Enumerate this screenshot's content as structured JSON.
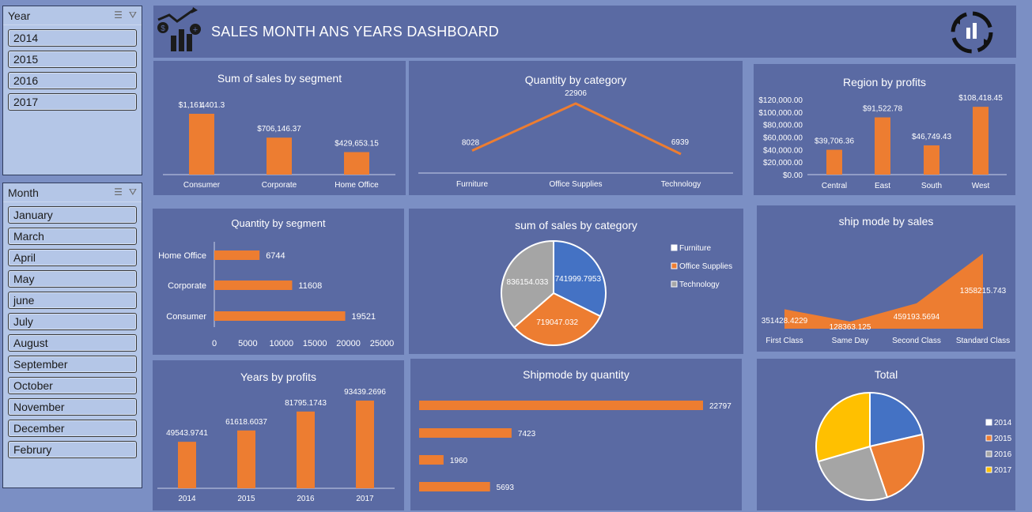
{
  "header": {
    "title": "SALES MONTH ANS YEARS DASHBOARD",
    "left_icon": "sales-growth-chart-icon",
    "right_icon": "cycle-chart-icon"
  },
  "year_slicer": {
    "title": "Year",
    "items": [
      "2014",
      "2015",
      "2016",
      "2017"
    ]
  },
  "month_slicer": {
    "title": "Month",
    "items": [
      "January",
      "March",
      "April",
      "May",
      "june",
      "July",
      "August",
      "September",
      "October",
      "November",
      "December",
      "Februry"
    ]
  },
  "colors": {
    "orange": "#ed7d31",
    "blue": "#4472c4",
    "gray": "#a5a5a5",
    "gold": "#ffc000",
    "panel": "#5a6aa3"
  },
  "charts": {
    "sales_by_segment": {
      "title": "Sum of sales by segment",
      "type": "bar",
      "categories": [
        "Consumer",
        "Corporate",
        "Home Office"
      ],
      "values": [
        1161401.34,
        706146.37,
        429653.15
      ],
      "labels": [
        "$1,161,401.3",
        "$706,146.37",
        "$429,653.15"
      ],
      "label_wrap": "4"
    },
    "quantity_by_category": {
      "title": "Quantity by category",
      "type": "line",
      "categories": [
        "Furniture",
        "Office Supplies",
        "Technology"
      ],
      "values": [
        8028,
        22906,
        6939
      ],
      "labels": [
        "8028",
        "22906",
        "6939"
      ]
    },
    "region_by_profits": {
      "title": "Region by profits",
      "type": "bar",
      "categories": [
        "Central",
        "East",
        "South",
        "West"
      ],
      "values": [
        39706.36,
        91522.78,
        46749.43,
        108418.45
      ],
      "labels": [
        "$39,706.36",
        "$91,522.78",
        "$46,749.43",
        "$108,418.45"
      ],
      "yticks": [
        "$0.00",
        "$20,000.00",
        "$40,000.00",
        "$60,000.00",
        "$80,000.00",
        "$100,000.00",
        "$120,000.00"
      ],
      "ylim": [
        0,
        120000
      ]
    },
    "quantity_by_segment": {
      "title": "Quantity by segment",
      "type": "hbar",
      "categories": [
        "Home Office",
        "Corporate",
        "Consumer"
      ],
      "values": [
        6744,
        11608,
        19521
      ],
      "labels": [
        "6744",
        "11608",
        "19521"
      ],
      "xticks": [
        "0",
        "5000",
        "10000",
        "15000",
        "20000",
        "25000"
      ],
      "xlim": [
        0,
        25000
      ]
    },
    "sales_by_category": {
      "title": "sum of sales by category",
      "type": "pie",
      "categories": [
        "Furniture",
        "Office Supplies",
        "Technology"
      ],
      "values": [
        741999.7953,
        719047.032,
        836154.033
      ],
      "labels": [
        "741999.7953",
        "719047.032",
        "836154.033"
      ],
      "legend": [
        "Furniture",
        "Office Supplies",
        "Technology"
      ]
    },
    "shipmode_by_sales": {
      "title": "ship mode by sales",
      "type": "area",
      "categories": [
        "First Class",
        "Same Day",
        "Second Class",
        "Standard Class"
      ],
      "values": [
        351428.4229,
        128363.125,
        459193.5694,
        1358215.743
      ],
      "labels": [
        "351428.4229",
        "128363.125",
        "459193.5694",
        "1358215.743"
      ]
    },
    "years_by_profits": {
      "title": "Years by profits",
      "type": "bar",
      "categories": [
        "2014",
        "2015",
        "2016",
        "2017"
      ],
      "values": [
        49543.9741,
        61618.6037,
        81795.1743,
        93439.2696
      ],
      "labels": [
        "49543.9741",
        "61618.6037",
        "81795.1743",
        "93439.2696"
      ]
    },
    "shipmode_by_quantity": {
      "title": "Shipmode by quantity",
      "type": "hbar",
      "values": [
        22797,
        7423,
        1960,
        5693
      ],
      "labels": [
        "22797",
        "7423",
        "1960",
        "5693"
      ]
    },
    "total": {
      "title": "Total",
      "type": "pie",
      "categories": [
        "2014",
        "2015",
        "2016",
        "2017"
      ],
      "values": [
        22.5,
        24.5,
        27.0,
        31.0
      ],
      "legend": [
        "2014",
        "2015",
        "2016",
        "2017"
      ]
    }
  }
}
